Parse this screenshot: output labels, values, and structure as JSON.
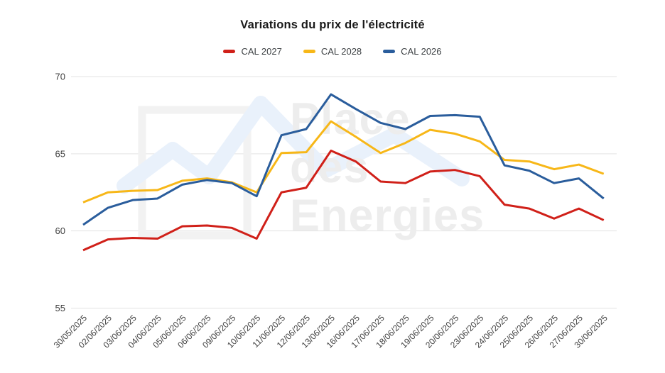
{
  "chart_data": {
    "type": "line",
    "title": "Variations du prix de l'électricité",
    "xlabel": "",
    "ylabel": "",
    "ylim": [
      55,
      70
    ],
    "yticks": [
      70,
      65,
      60,
      55
    ],
    "grid": true,
    "legend_position": "top-center",
    "x": [
      "30/05/2025",
      "02/06/2025",
      "03/06/2025",
      "04/06/2025",
      "05/06/2025",
      "06/06/2025",
      "09/06/2025",
      "10/06/2025",
      "11/06/2025",
      "12/06/2025",
      "13/06/2025",
      "16/06/2025",
      "17/06/2025",
      "18/06/2025",
      "19/06/2025",
      "20/06/2025",
      "23/06/2025",
      "24/06/2025",
      "25/06/2025",
      "26/06/2025",
      "27/06/2025",
      "30/06/2025"
    ],
    "series": [
      {
        "name": "CAL 2027",
        "color": "#D02019",
        "values": [
          58.75,
          59.45,
          59.55,
          59.5,
          60.3,
          60.35,
          60.2,
          59.5,
          62.5,
          62.8,
          65.2,
          64.5,
          63.2,
          63.1,
          63.85,
          63.95,
          63.55,
          61.7,
          61.45,
          60.8,
          61.45,
          60.7
        ]
      },
      {
        "name": "CAL 2028",
        "color": "#F7B718",
        "values": [
          61.85,
          62.5,
          62.6,
          62.65,
          63.25,
          63.4,
          63.15,
          62.5,
          65.05,
          65.1,
          67.1,
          66.1,
          65.05,
          65.7,
          66.55,
          66.3,
          65.8,
          64.6,
          64.5,
          64.0,
          64.3,
          63.7
        ]
      },
      {
        "name": "CAL 2026",
        "color": "#2A5D9C",
        "values": [
          60.4,
          61.5,
          62.0,
          62.1,
          63.0,
          63.3,
          63.1,
          62.25,
          66.2,
          66.6,
          68.85,
          67.9,
          67.0,
          66.6,
          67.45,
          67.5,
          67.4,
          64.25,
          63.9,
          63.1,
          63.4,
          62.1
        ]
      }
    ],
    "axis_text_color": "#404040",
    "gridline_color": "#e3e3e3"
  },
  "watermark": {
    "line1": "Place",
    "line2": "des",
    "line3": "Energies"
  }
}
